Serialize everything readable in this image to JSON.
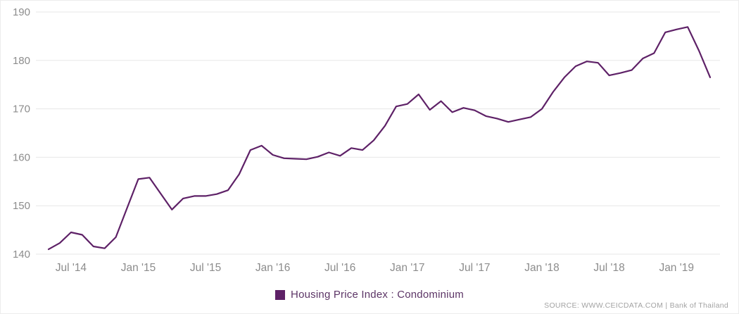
{
  "legend": {
    "label": "Housing Price Index : Condominium"
  },
  "source": {
    "text": "SOURCE: WWW.CEICDATA.COM | Bank of Thailand"
  },
  "chart_data": {
    "type": "line",
    "title": "",
    "series_name": "Housing Price Index : Condominium",
    "frequency": "monthly",
    "start_month": "2014-05",
    "end_month": "2019-04",
    "values": [
      141.0,
      142.3,
      144.5,
      144.0,
      141.6,
      141.2,
      143.5,
      149.5,
      155.5,
      155.8,
      152.5,
      149.2,
      151.5,
      152.0,
      152.0,
      152.4,
      153.2,
      156.5,
      161.5,
      162.4,
      160.5,
      159.8,
      159.7,
      159.6,
      160.1,
      161.0,
      160.3,
      161.9,
      161.5,
      163.5,
      166.5,
      170.5,
      171.0,
      173.0,
      169.8,
      171.6,
      169.3,
      170.2,
      169.7,
      168.5,
      168.0,
      167.3,
      167.8,
      168.3,
      170.0,
      173.5,
      176.5,
      178.8,
      179.8,
      179.5,
      176.9,
      177.4,
      178.0,
      180.4,
      181.5,
      185.8,
      186.4,
      186.9,
      182.0,
      176.5
    ],
    "ylim": [
      140,
      190
    ],
    "yticks": [
      140,
      150,
      160,
      170,
      180,
      190
    ],
    "x_ticks": [
      {
        "label": "Jul '14",
        "index": 2
      },
      {
        "label": "Jan '15",
        "index": 8
      },
      {
        "label": "Jul '15",
        "index": 14
      },
      {
        "label": "Jan '16",
        "index": 20
      },
      {
        "label": "Jul '16",
        "index": 26
      },
      {
        "label": "Jan '17",
        "index": 32
      },
      {
        "label": "Jul '17",
        "index": 38
      },
      {
        "label": "Jan '18",
        "index": 44
      },
      {
        "label": "Jul '18",
        "index": 50
      },
      {
        "label": "Jan '19",
        "index": 56
      }
    ],
    "grid": "horizontal",
    "legend_position": "bottom-center",
    "colors": {
      "line": "#5e2167",
      "grid": "#e7e7e7",
      "axis_label": "#8c8c8c",
      "legend_text": "#5c3566",
      "source_text": "#a3a3a3"
    }
  }
}
